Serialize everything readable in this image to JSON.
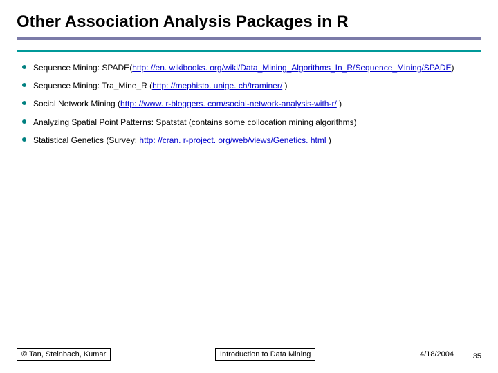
{
  "title": "Other Association Analysis Packages in R",
  "hr_colors": {
    "top": "#7b7ba8",
    "bottom": "#009999"
  },
  "bullet_color": "#008080",
  "link_color": "#0000cc",
  "items": [
    {
      "pre": "Sequence Mining: SPADE(",
      "link": "http: //en. wikibooks. org/wiki/Data_Mining_Algorithms_In_R/Sequence_Mining/SPADE",
      "post": ")"
    },
    {
      "pre": "Sequence Mining: Tra_Mine_R (",
      "link": "http: //mephisto. unige. ch/traminer/",
      "post": " )"
    },
    {
      "pre": "Social Network Mining (",
      "link": "http: //www. r-bloggers. com/social-network-analysis-with-r/",
      "post": " )"
    },
    {
      "pre": "Analyzing Spatial Point Patterns: Spatstat (contains some collocation mining algorithms)",
      "link": "",
      "post": ""
    },
    {
      "pre": "Statistical Genetics (Survey: ",
      "link": "http: //cran. r-project. org/web/views/Genetics. html",
      "post": " )"
    }
  ],
  "footer": {
    "left": "© Tan, Steinbach, Kumar",
    "center": "Introduction to Data Mining",
    "right": "4/18/2004",
    "page": "35"
  }
}
